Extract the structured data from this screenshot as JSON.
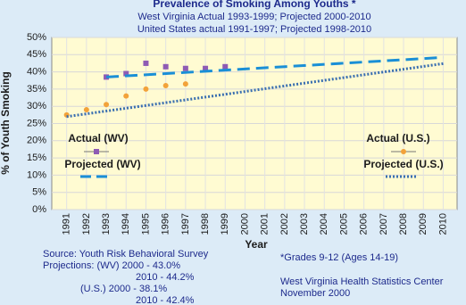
{
  "chart_data": {
    "type": "line",
    "title": "Prevalence of Smoking Among Youths *",
    "subtitle": [
      "West Virginia Actual 1993-1999; Projected 2000-2010",
      "United States actual 1991-1997; Projected 1998-2010"
    ],
    "x_label": "Year",
    "y_label": "% of Youth Smoking",
    "xlim": [
      1990.25,
      2010.7
    ],
    "xticks": [
      1991,
      1992,
      1993,
      1994,
      1995,
      1996,
      1997,
      1998,
      1999,
      2000,
      2001,
      2002,
      2003,
      2004,
      2005,
      2006,
      2007,
      2008,
      2009,
      2010
    ],
    "ylim": [
      0,
      50
    ],
    "yticks": [
      {
        "value": 0,
        "label": "0%"
      },
      {
        "value": 5,
        "label": "5%"
      },
      {
        "value": 10,
        "label": "10%"
      },
      {
        "value": 15,
        "label": "15%"
      },
      {
        "value": 20,
        "label": "20%"
      },
      {
        "value": 25,
        "label": "25%"
      },
      {
        "value": 30,
        "label": "30%"
      },
      {
        "value": 35,
        "label": "35%"
      },
      {
        "value": 40,
        "label": "40%"
      },
      {
        "value": 45,
        "label": "45%"
      },
      {
        "value": 50,
        "label": "50%"
      }
    ],
    "grid": true,
    "series": [
      {
        "name": "Actual (WV)",
        "color": "#8e5bb4",
        "style": "square",
        "x": [
          1993,
          1994,
          1995,
          1996,
          1997,
          1998,
          1999
        ],
        "values": [
          38.5,
          39.5,
          42.5,
          41.5,
          41,
          41,
          41.5
        ]
      },
      {
        "name": "Projected (WV)",
        "color": "#1a8fd6",
        "style": "dashed",
        "x": [
          1993,
          2010
        ],
        "values": [
          38.5,
          44.2
        ]
      },
      {
        "name": "Actual (U.S.)",
        "color": "#f2a23a",
        "style": "circle",
        "x": [
          1991,
          1992,
          1993,
          1994,
          1995,
          1996,
          1997
        ],
        "values": [
          27.5,
          29,
          30.5,
          33,
          35,
          36,
          36.5
        ]
      },
      {
        "name": "Projected (U.S.)",
        "color": "#3a6fb0",
        "style": "dotted",
        "x": [
          1991,
          2010
        ],
        "values": [
          27,
          42.4
        ]
      }
    ],
    "annotations": [
      "Source: Youth Risk  Behavioral Survey",
      "Projections: (WV)  2000 - 43.0%",
      "2010 - 44.2%",
      "(U.S.) 2000 - 38.1%",
      "2010 - 42.4%",
      "*Grades 9-12 (Ages 14-19)",
      "West Virginia Health Statistics Center",
      "November 2000"
    ]
  }
}
